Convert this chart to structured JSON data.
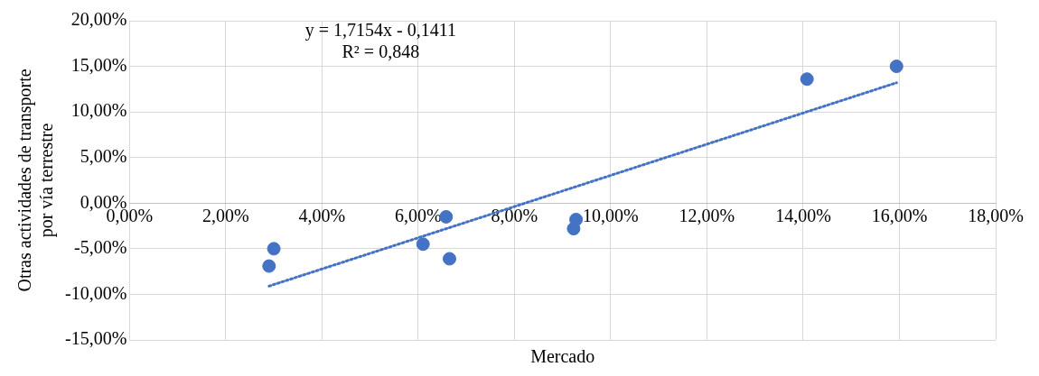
{
  "chart_data": {
    "type": "scatter",
    "xlabel": "Mercado",
    "ylabel": "Otras actividades de transporte por vía terrestre",
    "annotations": [
      "y = 1,7154x - 0,1411",
      "R² = 0,848"
    ],
    "series": [
      {
        "color": "#4472c4",
        "marker": "circle",
        "x": [
          2.9,
          3.0,
          6.1,
          6.58,
          6.65,
          9.23,
          9.28,
          14.08,
          15.94
        ],
        "values": [
          -6.9,
          -5.0,
          -4.5,
          -1.5,
          -6.1,
          -2.8,
          -1.8,
          13.6,
          15.0
        ]
      },
      {
        "type": "line",
        "color": "#4472c4",
        "line_style": "dotted",
        "marker": "none",
        "x": [
          2.9,
          15.94
        ],
        "values": [
          -9.1,
          13.2
        ]
      }
    ],
    "xlim": [
      0,
      18
    ],
    "xticks": [
      {
        "value": 0,
        "label": "0,00%"
      },
      {
        "value": 2,
        "label": "2,00%"
      },
      {
        "value": 4,
        "label": "4,00%"
      },
      {
        "value": 6,
        "label": "6,00%"
      },
      {
        "value": 8,
        "label": "8,00%"
      },
      {
        "value": 10,
        "label": "10,00%"
      },
      {
        "value": 12,
        "label": "12,00%"
      },
      {
        "value": 14,
        "label": "14,00%"
      },
      {
        "value": 16,
        "label": "16,00%"
      },
      {
        "value": 18,
        "label": "18,00%"
      }
    ],
    "ylim": [
      -15,
      20
    ],
    "yticks": [
      {
        "value": -15,
        "label": "-15,00%"
      },
      {
        "value": -10,
        "label": "-10,00%"
      },
      {
        "value": -5,
        "label": "-5,00%"
      },
      {
        "value": 0,
        "label": "0,00%"
      },
      {
        "value": 5,
        "label": "5,00%"
      },
      {
        "value": 10,
        "label": "10,00%"
      },
      {
        "value": 15,
        "label": "15,00%"
      },
      {
        "value": 20,
        "label": "20,00%"
      }
    ],
    "grid": true,
    "legend": false
  }
}
